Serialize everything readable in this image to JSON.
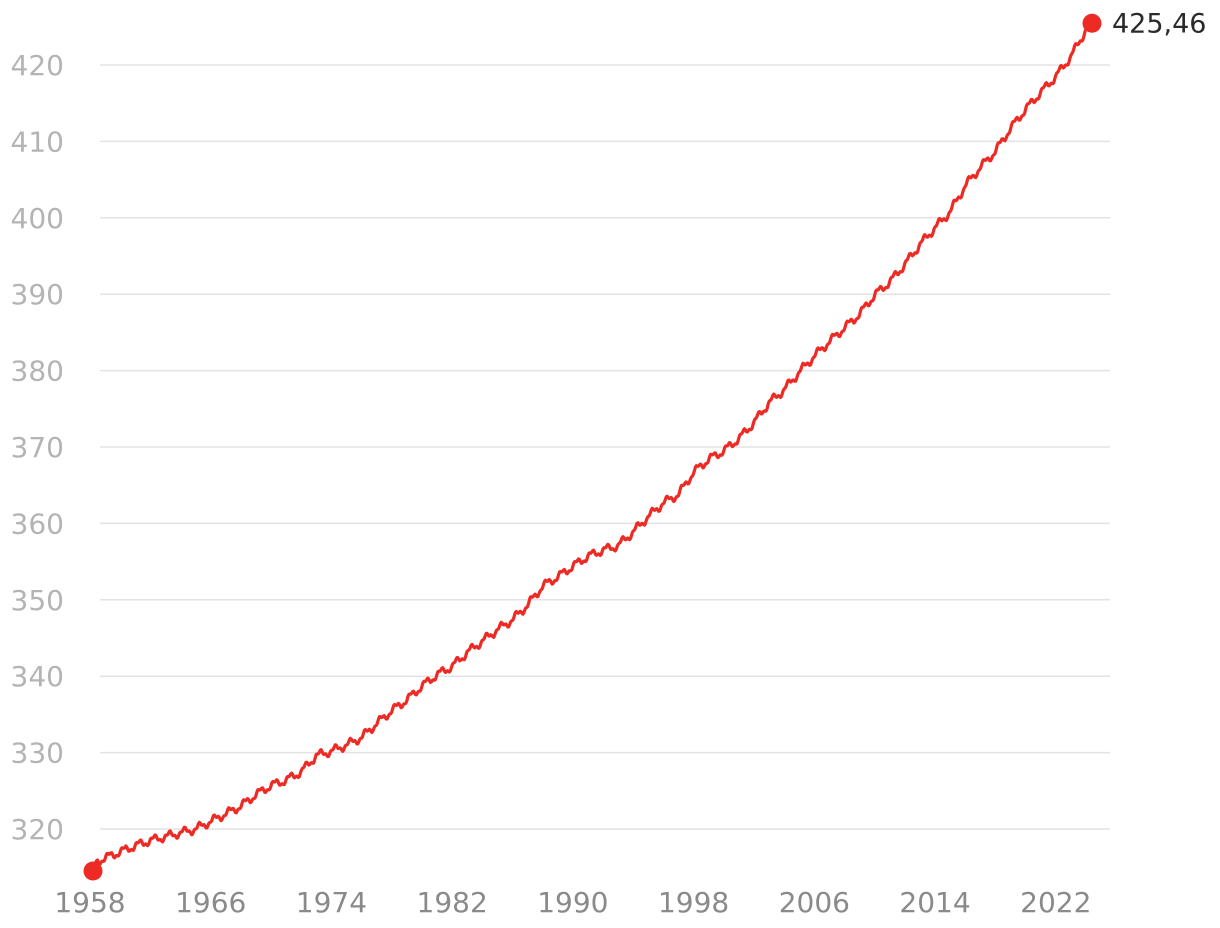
{
  "chart_data": {
    "type": "line",
    "title": "",
    "xlabel": "",
    "ylabel": "",
    "xlim": [
      1958.2,
      2024.4
    ],
    "ylim": [
      314.5,
      425.46
    ],
    "grid": true,
    "legend": "none",
    "y_ticks": [
      320,
      330,
      340,
      350,
      360,
      370,
      380,
      390,
      400,
      410,
      420
    ],
    "y_tick_labels": [
      "320",
      "330",
      "340",
      "350",
      "360",
      "370",
      "380",
      "390",
      "400",
      "410",
      "420"
    ],
    "x_ticks": [
      1958,
      1966,
      1974,
      1982,
      1990,
      1998,
      2006,
      2014,
      2022
    ],
    "x_tick_labels": [
      "1958",
      "1966",
      "1974",
      "1982",
      "1990",
      "1998",
      "2006",
      "2014",
      "2022"
    ],
    "series": [
      {
        "color": "#ee2a24",
        "x": [
          1958.2,
          1958.5,
          1959,
          1960,
          1961,
          1962,
          1963,
          1964,
          1965,
          1966,
          1967,
          1968,
          1969,
          1970,
          1971,
          1972,
          1973,
          1974,
          1975,
          1976,
          1977,
          1978,
          1979,
          1980,
          1981,
          1982,
          1983,
          1984,
          1985,
          1986,
          1987,
          1988,
          1989,
          1990,
          1991,
          1992,
          1993,
          1994,
          1995,
          1996,
          1997,
          1998,
          1999,
          2000,
          2001,
          2002,
          2003,
          2004,
          2005,
          2006,
          2007,
          2008,
          2009,
          2010,
          2011,
          2012,
          2013,
          2014,
          2015,
          2016,
          2017,
          2018,
          2019,
          2020,
          2021,
          2022,
          2023,
          2024,
          2024.4
        ],
        "y": [
          314.5,
          315.8,
          316.2,
          317.0,
          317.8,
          318.5,
          319.0,
          319.5,
          320.0,
          321.0,
          322.0,
          323.0,
          324.5,
          325.7,
          326.4,
          327.5,
          329.6,
          330.2,
          331.0,
          332.0,
          333.8,
          335.5,
          336.9,
          338.7,
          340.2,
          341.3,
          343.1,
          344.6,
          346.1,
          347.4,
          349.3,
          351.8,
          353.0,
          354.4,
          355.7,
          356.5,
          357.1,
          358.9,
          360.9,
          362.7,
          363.8,
          366.7,
          368.4,
          369.5,
          371.1,
          373.2,
          375.8,
          377.5,
          379.8,
          381.9,
          383.8,
          385.6,
          387.4,
          389.9,
          391.6,
          393.9,
          396.5,
          398.7,
          400.8,
          404.2,
          406.6,
          408.7,
          411.7,
          414.2,
          416.4,
          418.5,
          421.1,
          424.6,
          425.46
        ]
      }
    ],
    "end_marker": {
      "x": 2024.4,
      "y": 425.46,
      "label": "425,46"
    },
    "start_marker": {
      "x": 1958.2,
      "y": 314.5
    }
  }
}
